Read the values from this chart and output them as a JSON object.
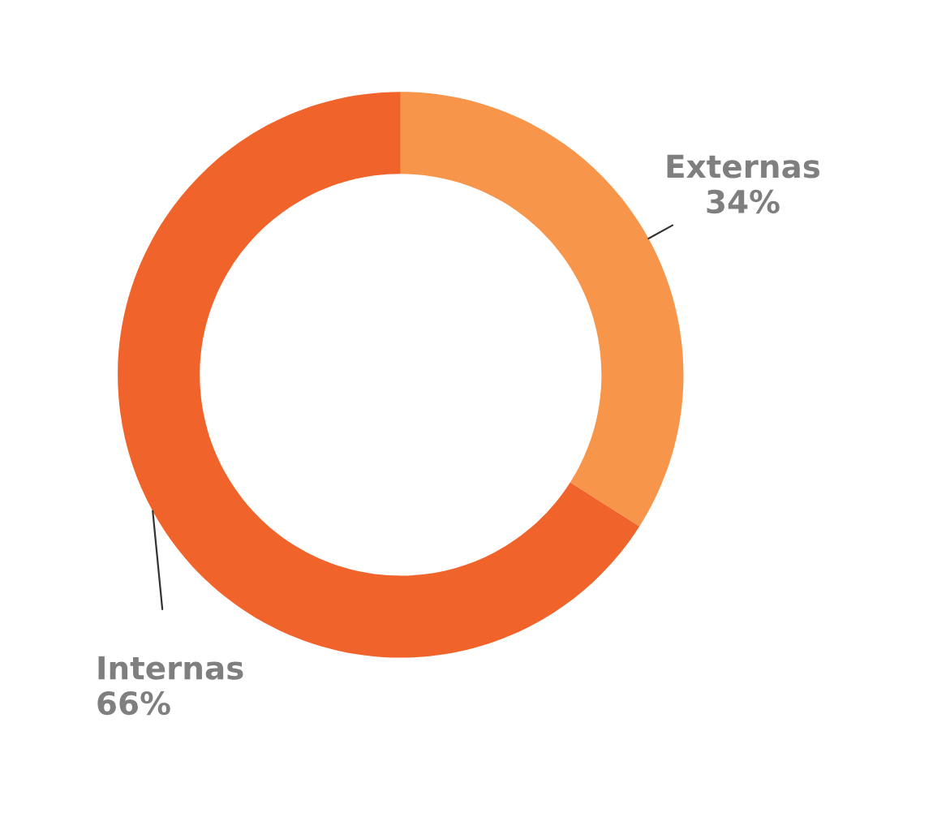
{
  "chart_data": {
    "type": "donut",
    "categories": [
      "Externas",
      "Internas"
    ],
    "values": [
      34,
      66
    ],
    "colors": [
      "#f7964a",
      "#f0642c"
    ],
    "value_labels": [
      "34%",
      "66%"
    ]
  }
}
